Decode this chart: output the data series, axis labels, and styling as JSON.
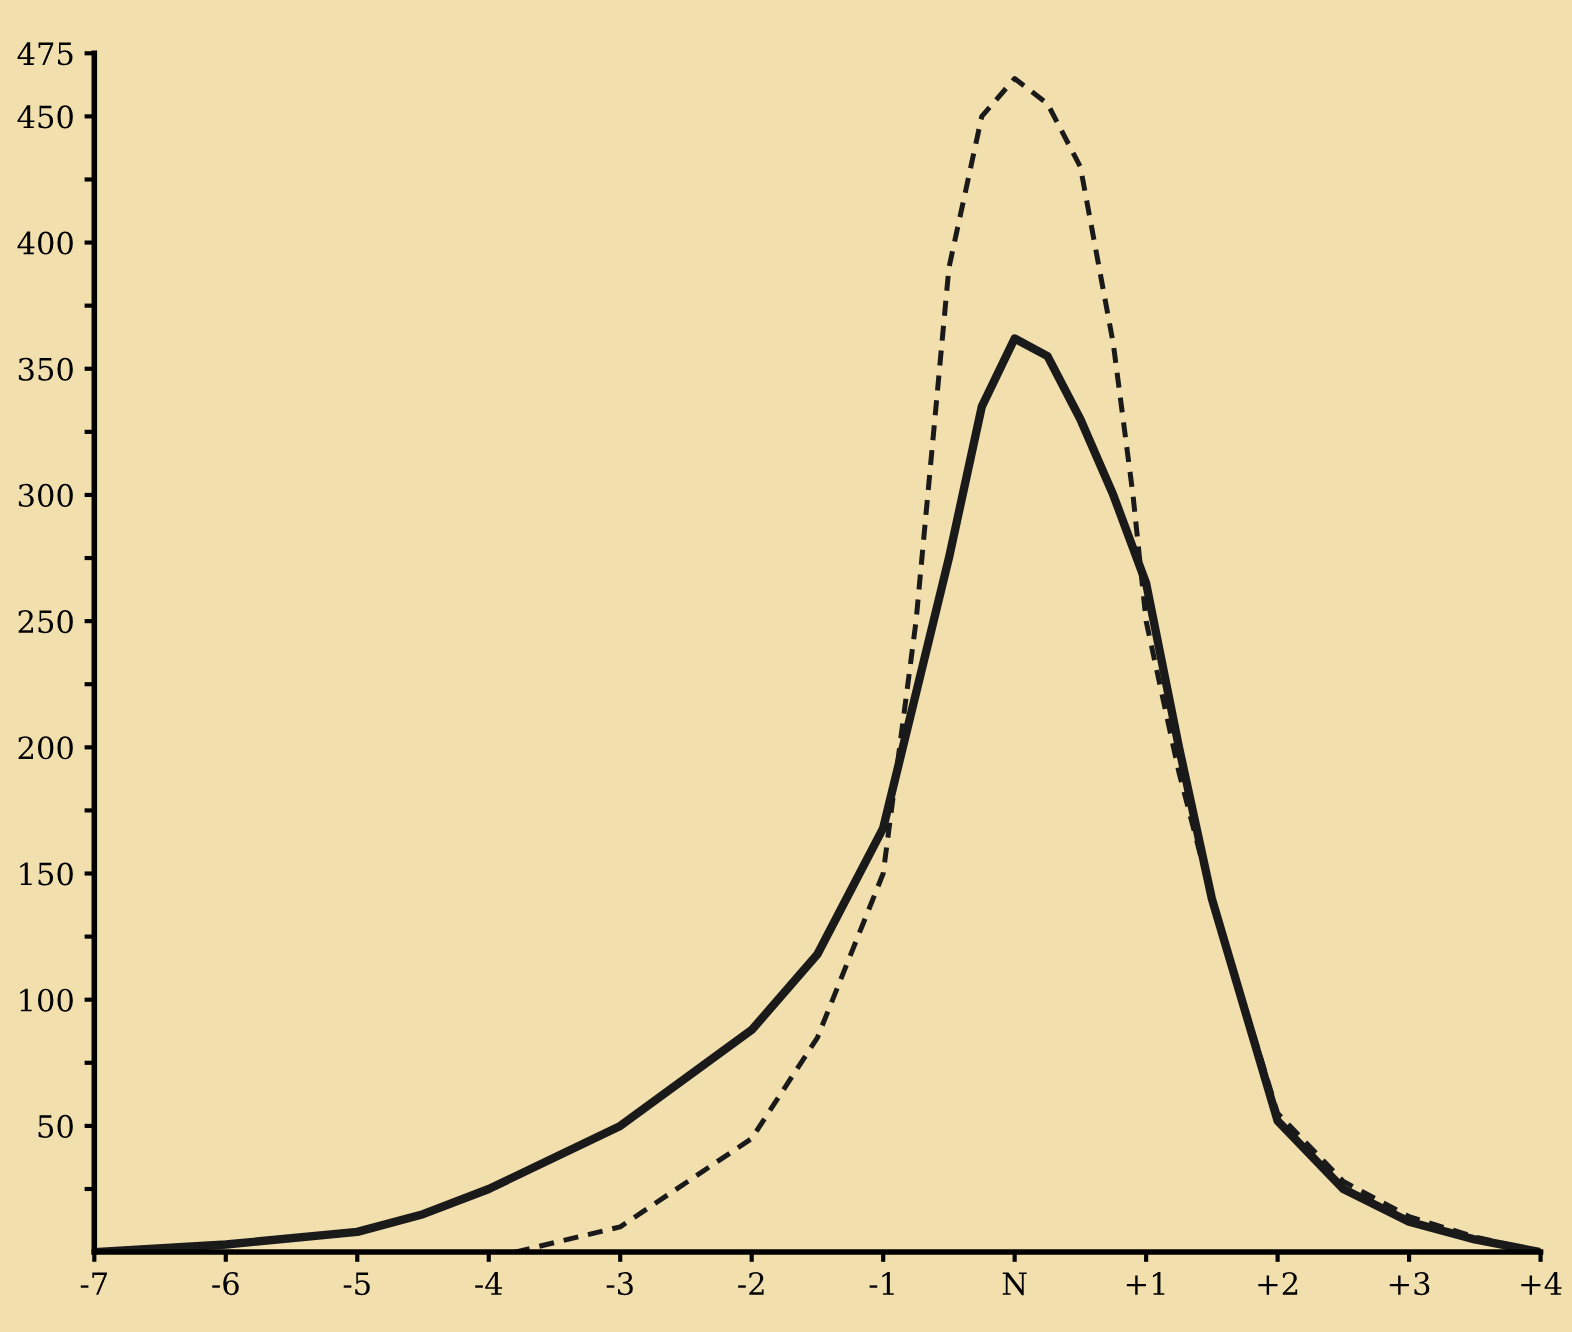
{
  "chart_data": {
    "type": "line",
    "xlim": [
      -7,
      4
    ],
    "ylim": [
      0,
      475
    ],
    "xticks": [
      {
        "value": -7,
        "label": "-7"
      },
      {
        "value": -6,
        "label": "-6"
      },
      {
        "value": -5,
        "label": "-5"
      },
      {
        "value": -4,
        "label": "-4"
      },
      {
        "value": -3,
        "label": "-3"
      },
      {
        "value": -2,
        "label": "-2"
      },
      {
        "value": -1,
        "label": "-1"
      },
      {
        "value": 0,
        "label": "N"
      },
      {
        "value": 1,
        "label": "+1"
      },
      {
        "value": 2,
        "label": "+2"
      },
      {
        "value": 3,
        "label": "+3"
      },
      {
        "value": 4,
        "label": "+4"
      }
    ],
    "yticks": [
      {
        "value": 25,
        "label": null
      },
      50,
      {
        "value": 75,
        "label": null
      },
      100,
      {
        "value": 125,
        "label": null
      },
      150,
      {
        "value": 175,
        "label": null
      },
      200,
      {
        "value": 225,
        "label": null
      },
      250,
      {
        "value": 275,
        "label": null
      },
      300,
      {
        "value": 325,
        "label": null
      },
      350,
      {
        "value": 375,
        "label": null
      },
      400,
      {
        "value": 425,
        "label": null
      },
      450,
      475
    ],
    "grid": false,
    "marker": "none",
    "series": [
      {
        "color": "#1a1a1a",
        "line_style": "solid",
        "x": [
          -7,
          -6,
          -5,
          -4.5,
          -4,
          -3,
          -2,
          -1.5,
          -1,
          -0.5,
          -0.25,
          0,
          0.25,
          0.5,
          0.75,
          1,
          1.25,
          1.5,
          2,
          2.5,
          3,
          3.5,
          4
        ],
        "values": [
          0,
          3,
          8,
          15,
          25,
          50,
          88,
          118,
          168,
          275,
          335,
          362,
          355,
          330,
          300,
          265,
          200,
          140,
          52,
          25,
          12,
          5,
          0
        ]
      },
      {
        "color": "#1a1a1a",
        "line_style": "dashed",
        "x": [
          -3.8,
          -3,
          -2,
          -1.5,
          -1,
          -0.75,
          -0.5,
          -0.25,
          0,
          0.25,
          0.5,
          0.75,
          0.9,
          1,
          1.25,
          1.5,
          2,
          2.5,
          3,
          3.5,
          4
        ],
        "values": [
          0,
          10,
          45,
          85,
          150,
          250,
          390,
          450,
          465,
          455,
          430,
          360,
          300,
          250,
          190,
          140,
          55,
          28,
          14,
          6,
          0
        ]
      }
    ]
  }
}
